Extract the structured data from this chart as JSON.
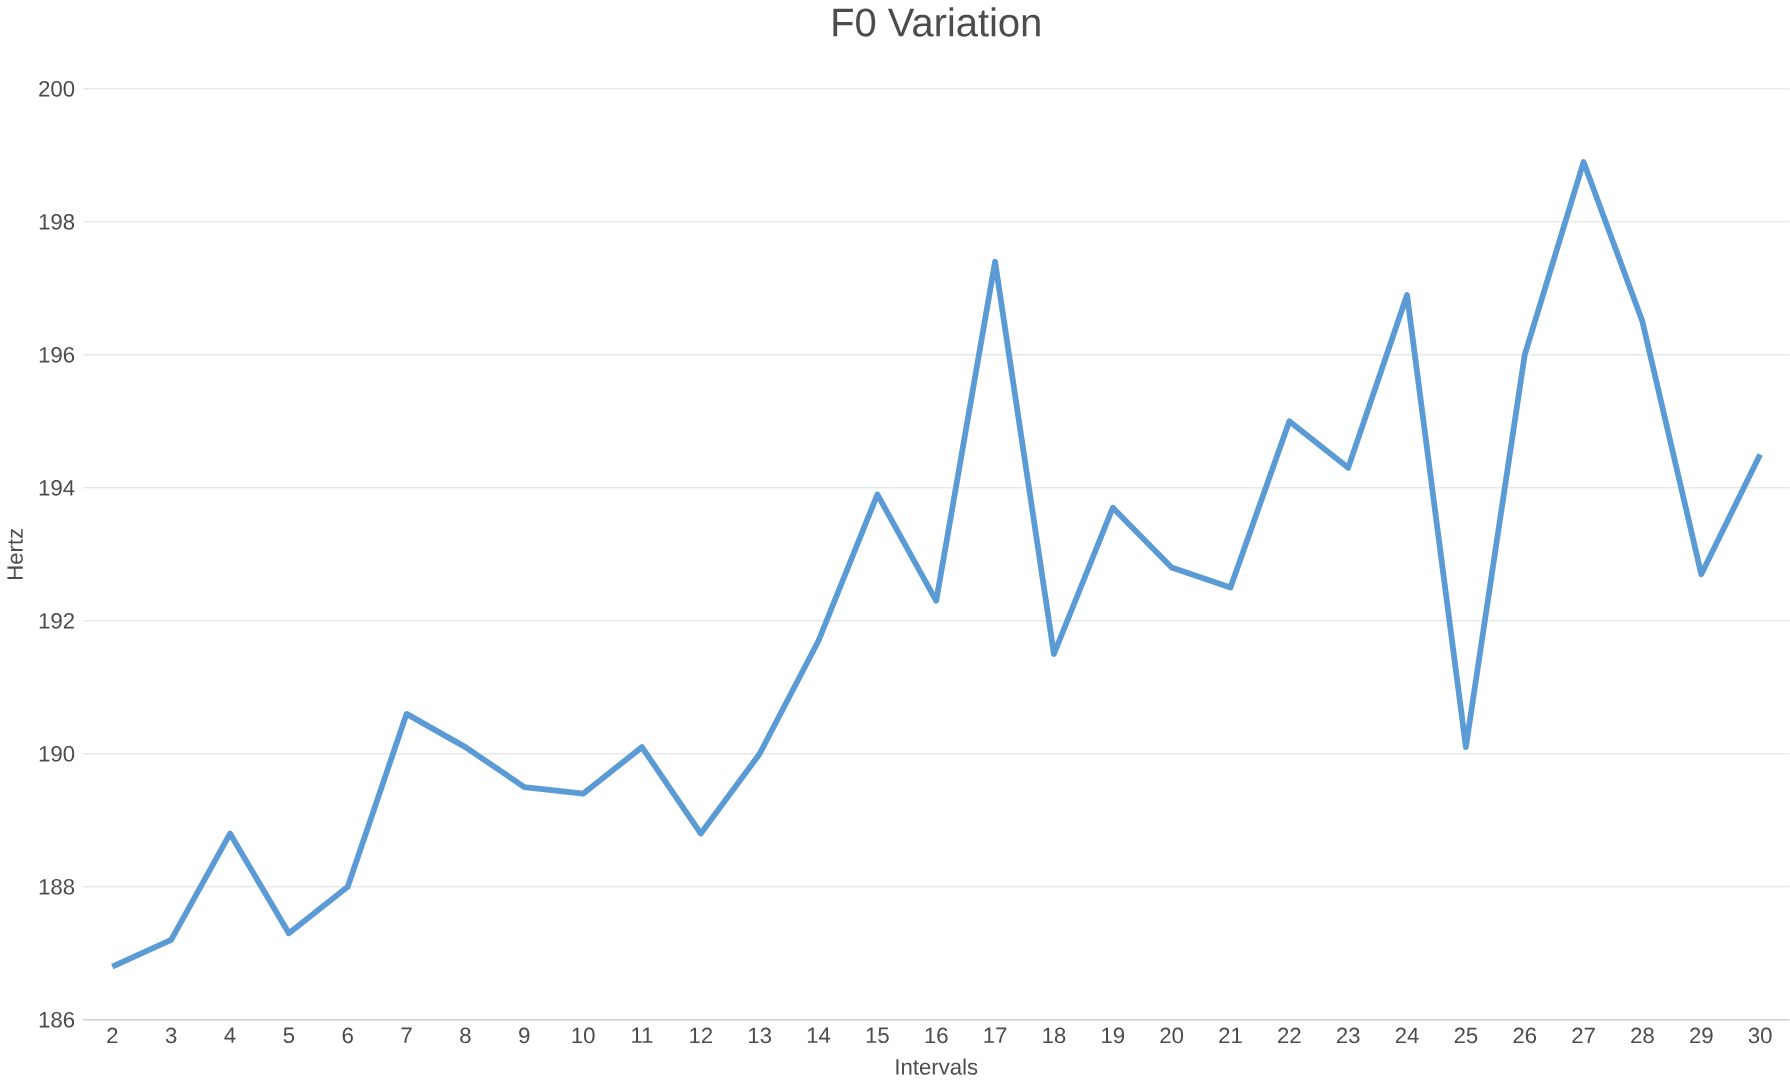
{
  "chart_data": {
    "type": "line",
    "title": "F0 Variation",
    "xlabel": "Intervals",
    "ylabel": "Hertz",
    "categories": [
      "2",
      "3",
      "4",
      "5",
      "6",
      "7",
      "8",
      "9",
      "10",
      "11",
      "12",
      "13",
      "14",
      "15",
      "16",
      "17",
      "18",
      "19",
      "20",
      "21",
      "22",
      "23",
      "24",
      "25",
      "26",
      "27",
      "28",
      "29",
      "30"
    ],
    "series": [
      {
        "color": "#5b9bd5",
        "values": [
          186.8,
          187.2,
          188.8,
          187.3,
          188.0,
          190.6,
          190.1,
          189.5,
          189.4,
          190.1,
          188.8,
          190.0,
          191.7,
          193.9,
          192.3,
          197.4,
          191.5,
          193.7,
          192.8,
          192.5,
          195.0,
          194.3,
          196.9,
          190.1,
          196.0,
          198.9,
          196.5,
          192.7,
          194.5
        ]
      }
    ],
    "ylim": [
      186,
      200
    ],
    "yticks": [
      186,
      188,
      190,
      192,
      194,
      196,
      198,
      200
    ],
    "grid": "y",
    "marker": "none",
    "line_style": "solid"
  }
}
